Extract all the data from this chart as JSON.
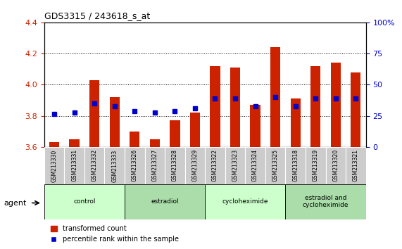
{
  "title": "GDS3315 / 243618_s_at",
  "samples": [
    "GSM213330",
    "GSM213331",
    "GSM213332",
    "GSM213333",
    "GSM213326",
    "GSM213327",
    "GSM213328",
    "GSM213329",
    "GSM213322",
    "GSM213323",
    "GSM213324",
    "GSM213325",
    "GSM213318",
    "GSM213319",
    "GSM213320",
    "GSM213321"
  ],
  "red_values": [
    3.63,
    3.65,
    4.03,
    3.92,
    3.7,
    3.65,
    3.77,
    3.82,
    4.12,
    4.11,
    3.87,
    4.24,
    3.91,
    4.12,
    4.14,
    4.08
  ],
  "blue_values": [
    3.81,
    3.82,
    3.88,
    3.86,
    3.83,
    3.82,
    3.83,
    3.85,
    3.91,
    3.91,
    3.86,
    3.92,
    3.86,
    3.91,
    3.91,
    3.91
  ],
  "ymin": 3.6,
  "ymax": 4.4,
  "y2min": 0,
  "y2max": 100,
  "yticks": [
    3.6,
    3.8,
    4.0,
    4.2,
    4.4
  ],
  "y2ticks": [
    0,
    25,
    50,
    75,
    100
  ],
  "groups": [
    {
      "label": "control",
      "start": 0,
      "end": 4
    },
    {
      "label": "estradiol",
      "start": 4,
      "end": 8
    },
    {
      "label": "cycloheximide",
      "start": 8,
      "end": 12
    },
    {
      "label": "estradiol and\ncycloheximide",
      "start": 12,
      "end": 16
    }
  ],
  "group_colors_even": "#ccffcc",
  "group_colors_odd": "#aaddaa",
  "bar_color": "#cc2200",
  "blue_color": "#0000cc",
  "baseline": 3.6,
  "tick_label_bg": "#cccccc",
  "legend_red": "transformed count",
  "legend_blue": "percentile rank within the sample",
  "agent_label": "agent"
}
